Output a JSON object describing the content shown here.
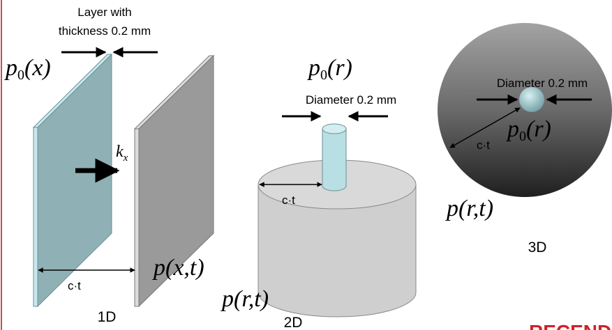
{
  "layer_label": [
    "Layer with",
    "thickness 0.2 mm"
  ],
  "panels": [
    {
      "label": "1D",
      "source": {
        "base": "p",
        "sub": "0",
        "arg": "(x)"
      },
      "wave_vector": {
        "base": "k",
        "sub": "x"
      },
      "distance": "c·t",
      "field": "p(x,t)"
    },
    {
      "label": "2D",
      "source": {
        "base": "p",
        "sub": "0",
        "arg": "(r)"
      },
      "diameter": "Diameter 0.2 mm",
      "distance": "c·t",
      "field": "p(r,t)"
    },
    {
      "label": "3D",
      "source": {
        "base": "p",
        "sub": "0",
        "arg": "(r)"
      },
      "diameter": "Diameter 0.2 mm",
      "distance": "c·t",
      "field": "p(r,t)"
    }
  ],
  "logo": "RECEND"
}
